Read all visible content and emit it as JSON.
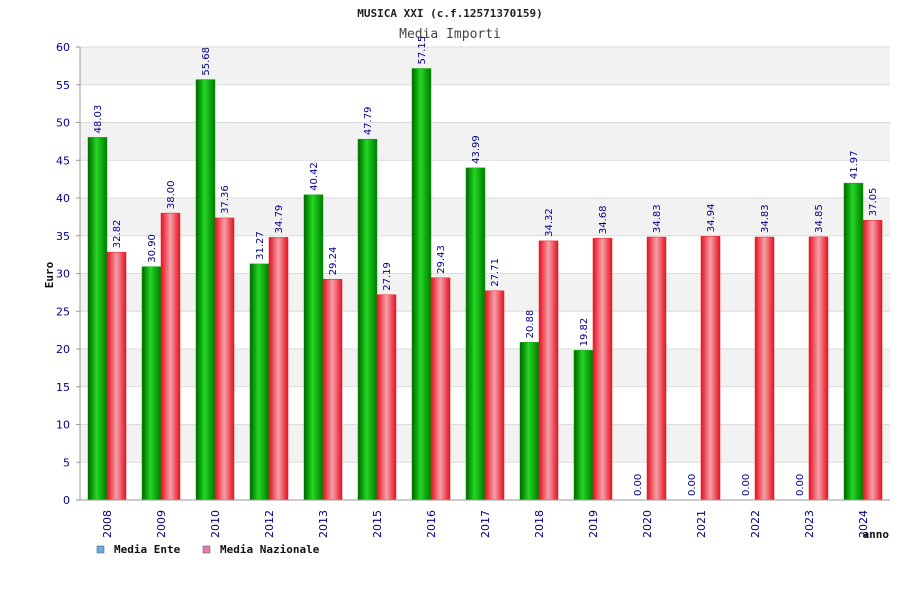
{
  "chart_data": {
    "type": "bar",
    "title": "MUSICA XXI (c.f.12571370159)",
    "subtitle": "Media Importi",
    "xlabel": "anno",
    "ylabel": "Euro",
    "ylim": [
      0,
      60
    ],
    "yticks": [
      0,
      5,
      10,
      15,
      20,
      25,
      30,
      35,
      40,
      45,
      50,
      55,
      60
    ],
    "grid": true,
    "legend_position": "bottom-left",
    "categories": [
      "2008",
      "2009",
      "2010",
      "2012",
      "2013",
      "2015",
      "2016",
      "2017",
      "2018",
      "2019",
      "2020",
      "2021",
      "2022",
      "2023",
      "2024"
    ],
    "series": [
      {
        "name": "Media Ente",
        "color": "#00a000",
        "legend_color": "#6aa6e8",
        "values": [
          48.03,
          30.9,
          55.68,
          31.27,
          40.42,
          47.79,
          57.15,
          43.99,
          20.88,
          19.82,
          0.0,
          0.0,
          0.0,
          0.0,
          41.97
        ]
      },
      {
        "name": "Media Nazionale",
        "color": "#e8202a",
        "legend_color": "#e87ab0",
        "values": [
          32.82,
          38.0,
          37.36,
          34.79,
          29.24,
          27.19,
          29.43,
          27.71,
          34.32,
          34.68,
          34.83,
          34.94,
          34.83,
          34.85,
          37.05
        ]
      }
    ]
  }
}
